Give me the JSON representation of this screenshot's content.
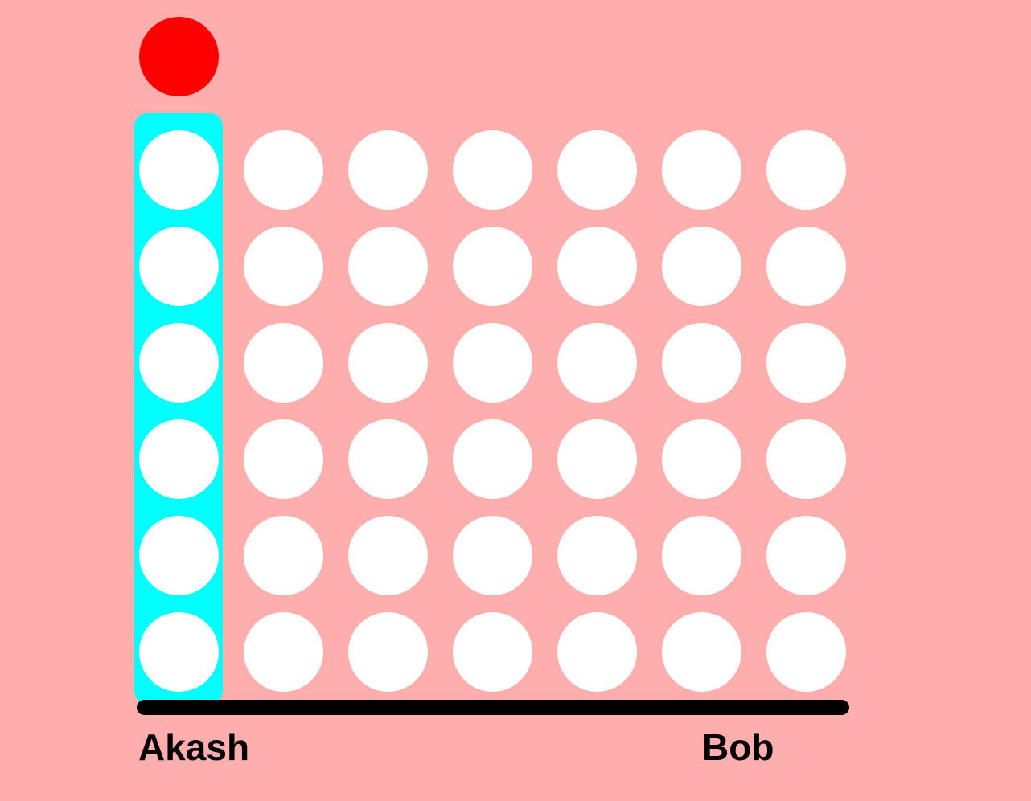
{
  "board": {
    "rows": 6,
    "columns": 7,
    "highlighted_column": 0,
    "drop_column": 0,
    "cells": [
      [
        "empty",
        "empty",
        "empty",
        "empty",
        "empty",
        "empty",
        "empty"
      ],
      [
        "empty",
        "empty",
        "empty",
        "empty",
        "empty",
        "empty",
        "empty"
      ],
      [
        "empty",
        "empty",
        "empty",
        "empty",
        "empty",
        "empty",
        "empty"
      ],
      [
        "empty",
        "empty",
        "empty",
        "empty",
        "empty",
        "empty",
        "empty"
      ],
      [
        "empty",
        "empty",
        "empty",
        "empty",
        "empty",
        "empty",
        "empty"
      ],
      [
        "empty",
        "empty",
        "empty",
        "empty",
        "empty",
        "empty",
        "empty"
      ]
    ]
  },
  "colors": {
    "background": "#ffaeae",
    "highlight": "#00ffff",
    "empty_cell": "#ffffff",
    "current_disc": "#ff0000",
    "baseline": "#000000"
  },
  "players": {
    "left": "Akash",
    "right": "Bob"
  }
}
